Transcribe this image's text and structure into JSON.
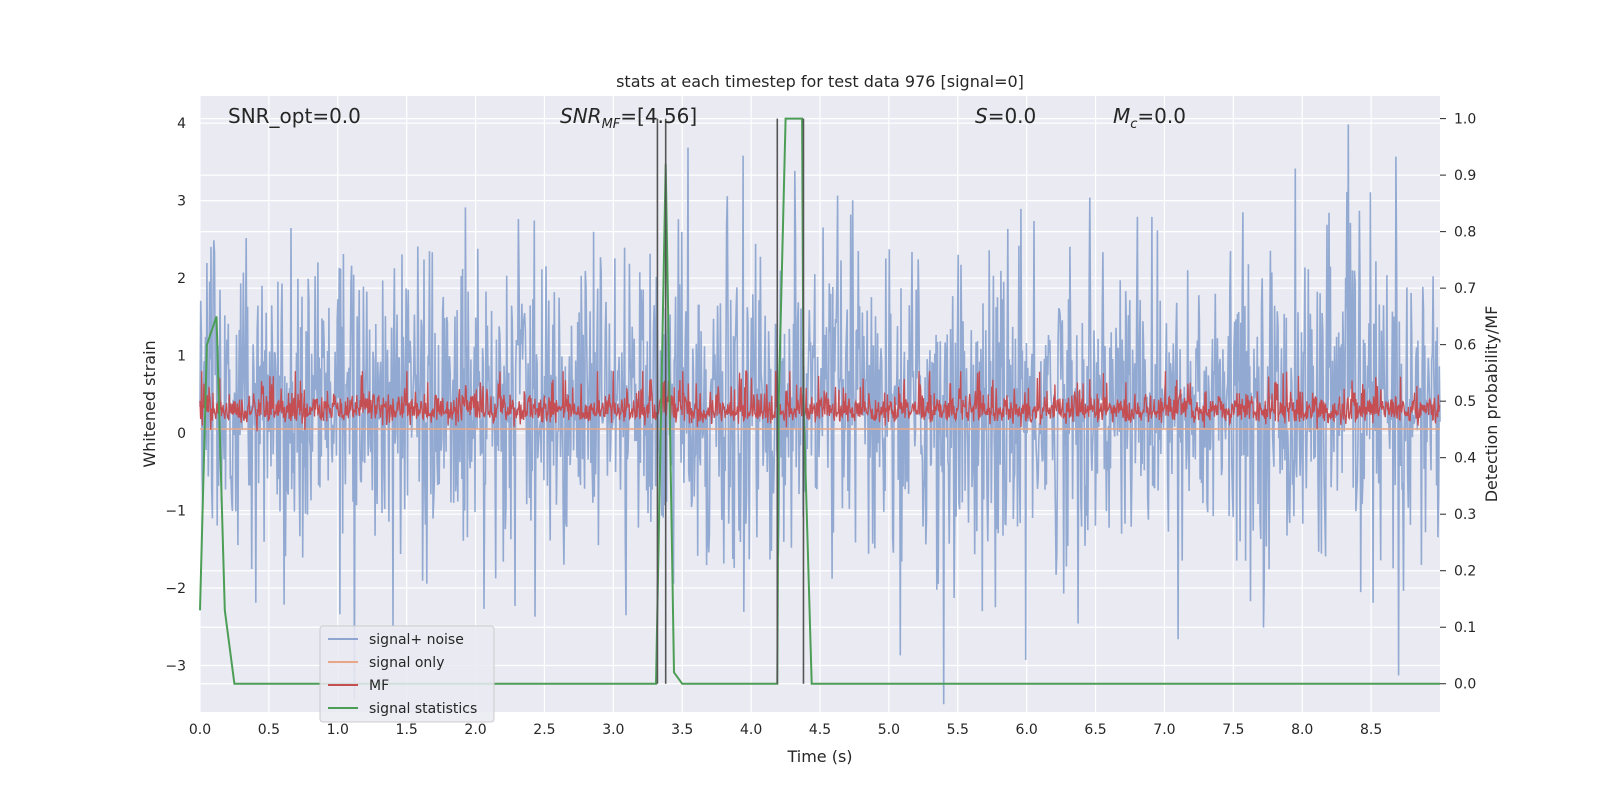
{
  "chart_data": {
    "type": "line",
    "title": "stats at each timestep for test data 976 [signal=0]",
    "xlabel": "Time (s)",
    "ylabel_left": "Whitened strain",
    "ylabel_right": "Detection probability/MF",
    "xlim": [
      0,
      9.0
    ],
    "ylim_left": [
      -3.6,
      4.35
    ],
    "ylim_right": [
      -0.05,
      1.04
    ],
    "x_ticks": [
      "0.0",
      "0.5",
      "1.0",
      "1.5",
      "2.0",
      "2.5",
      "3.0",
      "3.5",
      "4.0",
      "4.5",
      "5.0",
      "5.5",
      "6.0",
      "6.5",
      "7.0",
      "7.5",
      "8.0",
      "8.5"
    ],
    "y_ticks_left": [
      "−3",
      "−2",
      "−1",
      "0",
      "1",
      "2",
      "3",
      "4"
    ],
    "y_ticks_right": [
      "0.0",
      "0.1",
      "0.2",
      "0.3",
      "0.4",
      "0.5",
      "0.6",
      "0.7",
      "0.8",
      "0.9",
      "1.0"
    ],
    "grid": true,
    "legend_position": "lower-left",
    "annotations": {
      "snr_opt": "SNR_opt=0.0",
      "snr_mf_main": "SNR",
      "snr_mf_sub": "MF",
      "snr_mf_val": "=[4.56]",
      "s_main": "S",
      "s_val": "=0.0",
      "mc_main": "M",
      "mc_sub": "c",
      "mc_val": "=0.0"
    },
    "series": [
      {
        "name": "signal+ noise",
        "color": "#8da5d0",
        "axis": "left",
        "description_values": "noise band roughly -2 to 2.5, peaks to ±3.5"
      },
      {
        "name": "signal only",
        "color": "#e8a888",
        "axis": "left",
        "values_constant": 0.0
      },
      {
        "name": "MF",
        "color": "#c44e52",
        "axis": "left",
        "range": [
          0.0,
          0.8
        ]
      },
      {
        "name": "signal statistics",
        "color": "#4c9e57",
        "axis": "right",
        "x": [
          0.0,
          0.05,
          0.12,
          0.18,
          0.25,
          0.4,
          2.5,
          3.3,
          3.31,
          3.38,
          3.44,
          3.5,
          4.19,
          4.2,
          4.25,
          4.37,
          4.38,
          4.44,
          9.0
        ],
        "values": [
          0.13,
          0.6,
          0.65,
          0.13,
          0.0,
          0.0,
          0.0,
          0.0,
          0.0,
          0.92,
          0.02,
          0.0,
          0.0,
          0.5,
          1.0,
          1.0,
          0.5,
          0.0,
          0.0
        ]
      }
    ],
    "vlines": [
      3.32,
      3.38,
      4.19,
      4.38
    ],
    "vline_color": "#555555"
  }
}
